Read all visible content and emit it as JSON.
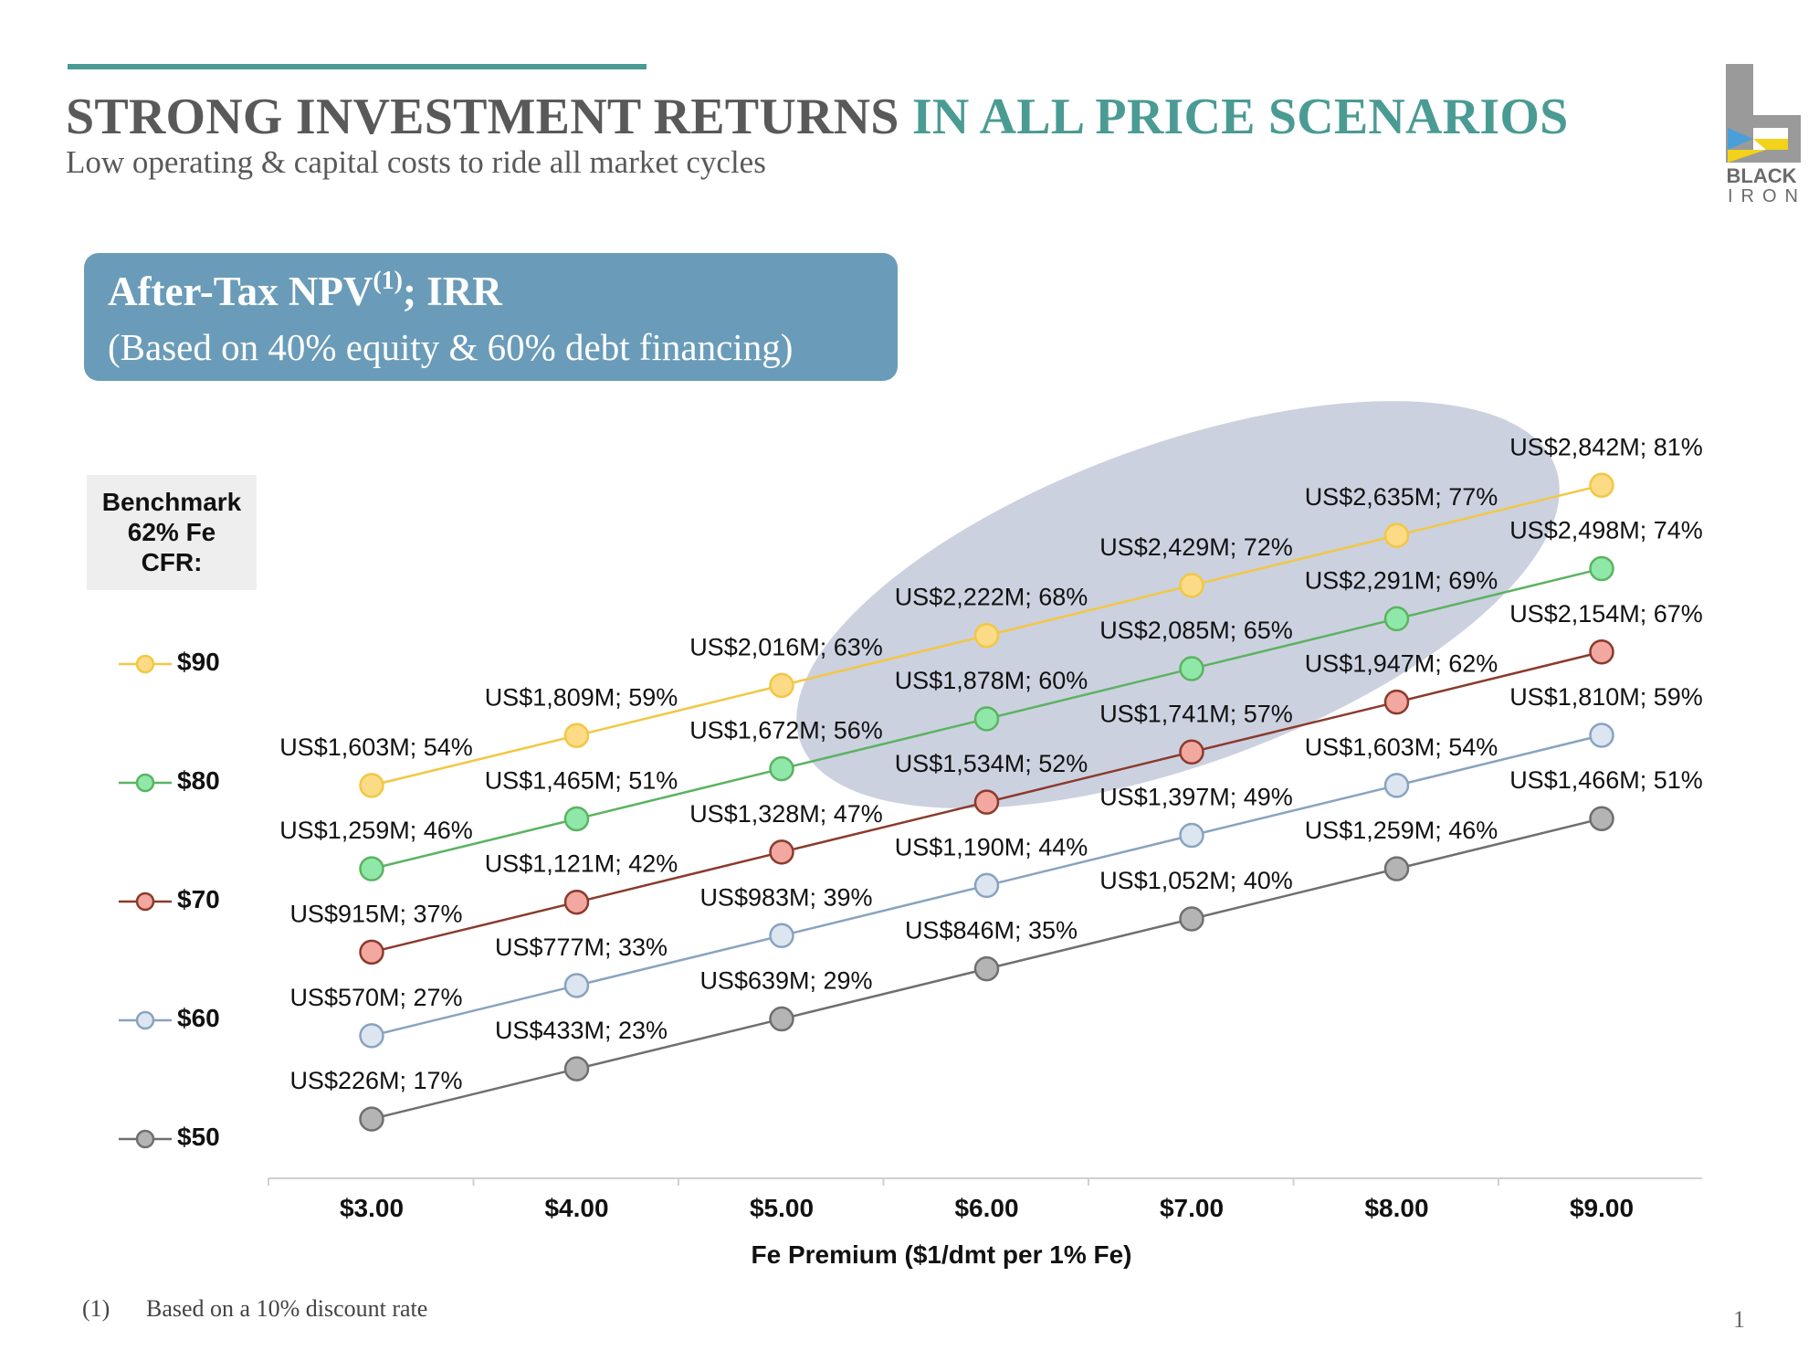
{
  "header": {
    "title_part1": "STRONG INVESTMENT RETURNS",
    "title_part2": "IN ALL PRICE SCENARIOS",
    "subtitle": "Low operating & capital costs to ride all market cycles",
    "accent_color": "#4a9b93"
  },
  "logo": {
    "line1": "BLACK",
    "line2": "IRON",
    "icon": "black-iron-logo"
  },
  "npv_box": {
    "title": "After-Tax NPV",
    "superscript": "(1)",
    "title_suffix": "; IRR",
    "subtitle": "(Based on 40% equity & 60% debt financing)",
    "color": "#6a9cb9"
  },
  "benchmark": {
    "line1": "Benchmark",
    "line2": "62% Fe",
    "line3": "CFR:"
  },
  "footnote": {
    "marker": "(1)",
    "text": "Based on a 10% discount rate"
  },
  "page_number": "1",
  "chart_data": {
    "type": "line",
    "xlabel": "Fe Premium ($1/dmt per 1% Fe)",
    "ylabel": "",
    "categories": [
      "$3.00",
      "$4.00",
      "$5.00",
      "$6.00",
      "$7.00",
      "$8.00",
      "$9.00"
    ],
    "x": [
      3,
      4,
      5,
      6,
      7,
      8,
      9
    ],
    "ylim": [
      0,
      3000
    ],
    "legend_position": "left",
    "highlight_ellipse": true,
    "series": [
      {
        "name": "$90",
        "line_color": "#f2c744",
        "marker_fill": "#fbdb86",
        "values": [
          1603,
          1809,
          2016,
          2222,
          2429,
          2635,
          2842
        ],
        "labels": [
          "US$1,603M; 54%",
          "US$1,809M; 59%",
          "US$2,016M; 63%",
          "US$2,222M; 68%",
          "US$2,429M; 72%",
          "US$2,635M; 77%",
          "US$2,842M; 81%"
        ]
      },
      {
        "name": "$80",
        "line_color": "#5bb361",
        "marker_fill": "#8fe8a8",
        "values": [
          1259,
          1465,
          1672,
          1878,
          2085,
          2291,
          2498
        ],
        "labels": [
          "US$1,259M; 46%",
          "US$1,465M; 51%",
          "US$1,672M; 56%",
          "US$1,878M; 60%",
          "US$2,085M; 65%",
          "US$2,291M; 69%",
          "US$2,498M; 74%"
        ]
      },
      {
        "name": "$70",
        "line_color": "#8b3a2c",
        "marker_fill": "#f2a8a0",
        "values": [
          915,
          1121,
          1328,
          1534,
          1741,
          1947,
          2154
        ],
        "labels": [
          "US$915M; 37%",
          "US$1,121M; 42%",
          "US$1,328M; 47%",
          "US$1,534M; 52%",
          "US$1,741M; 57%",
          "US$1,947M; 62%",
          "US$2,154M; 67%"
        ]
      },
      {
        "name": "$60",
        "line_color": "#88a3c0",
        "marker_fill": "#dde6f0",
        "values": [
          570,
          777,
          983,
          1190,
          1397,
          1603,
          1810
        ],
        "labels": [
          "US$570M; 27%",
          "US$777M; 33%",
          "US$983M; 39%",
          "US$1,190M; 44%",
          "US$1,397M; 49%",
          "US$1,603M; 54%",
          "US$1,810M; 59%"
        ]
      },
      {
        "name": "$50",
        "line_color": "#6f6f6f",
        "marker_fill": "#b4b4b4",
        "values": [
          226,
          433,
          639,
          846,
          1052,
          1259,
          1466
        ],
        "labels": [
          "US$226M; 17%",
          "US$433M; 23%",
          "US$639M; 29%",
          "US$846M; 35%",
          "US$1,052M; 40%",
          "US$1,259M; 46%",
          "US$1,466M; 51%"
        ]
      }
    ]
  }
}
